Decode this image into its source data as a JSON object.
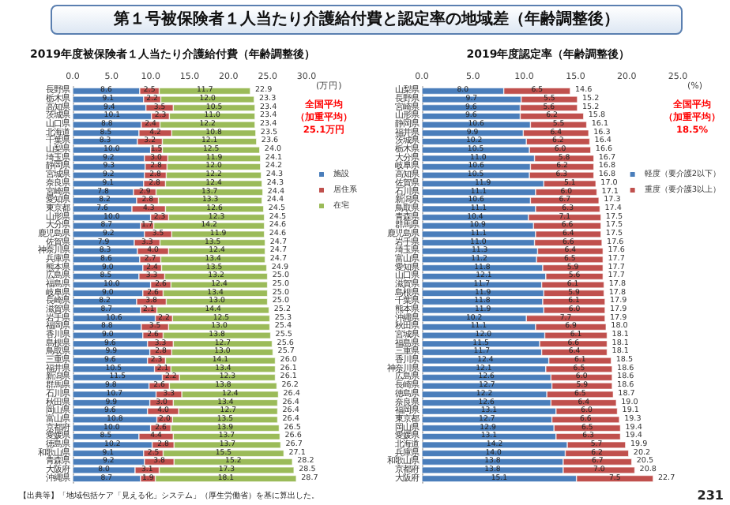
{
  "chart_data": [
    {
      "type": "bar",
      "title": "第１号被保険者１人当たり介護給付費と認定率の地域差（年齢調整後）",
      "subtitle": "2019年度被保険者１人当たり介護給付費（年齢調整後）",
      "xlabel": "(万円)",
      "orientation": "horizontal",
      "stacked": true,
      "legend": "right",
      "grid": false,
      "categories": [
        "長野県",
        "栃木県",
        "高知県",
        "茨城県",
        "山口県",
        "北海道",
        "千葉県",
        "山梨県",
        "埼玉県",
        "静岡県",
        "宮城県",
        "奈良県",
        "宮崎県",
        "愛知県",
        "東京都",
        "山形県",
        "大分県",
        "鹿児島県",
        "佐賀県",
        "神奈川県",
        "兵庫県",
        "熊本県",
        "広島県",
        "福島県",
        "岐阜県",
        "長崎県",
        "滋賀県",
        "岩手県",
        "福岡県",
        "香川県",
        "島根県",
        "鳥取県",
        "三重県",
        "福井県",
        "新潟県",
        "群馬県",
        "石川県",
        "秋田県",
        "岡山県",
        "富山県",
        "京都府",
        "愛媛県",
        "徳島県",
        "和歌山県",
        "青森県",
        "大阪府",
        "沖縄県"
      ],
      "series": [
        {
          "name": "施設",
          "color": "#4a7ebb",
          "values": [
            8.6,
            9.1,
            9.4,
            10.1,
            8.8,
            8.5,
            8.3,
            10.0,
            9.2,
            9.3,
            9.2,
            9.1,
            7.8,
            8.2,
            7.6,
            10.0,
            8.7,
            9.2,
            7.9,
            8.3,
            8.6,
            9.0,
            8.5,
            10.0,
            9.0,
            8.2,
            8.7,
            10.6,
            8.8,
            9.0,
            9.6,
            9.9,
            9.6,
            10.5,
            11.5,
            9.8,
            10.7,
            9.9,
            9.6,
            10.8,
            10.0,
            8.5,
            10.2,
            9.1,
            9.2,
            8.0,
            8.7
          ],
          "value_labels": [
            "8.6",
            "9.1",
            "9.4",
            "10.1",
            "8.8",
            "8.5",
            "8.3",
            "10.0",
            "9.2",
            "9.3",
            "9.2",
            "9.1",
            "7.8",
            "8.2",
            "7.6",
            "10.0",
            "8.7",
            "9.2",
            "7.9",
            "8.3",
            "8.6",
            "9.0",
            "8.5",
            "10.0",
            "9.0",
            "8.2",
            "8.7",
            "10.6",
            "8.8",
            "9.0",
            "9.6",
            "9.9",
            "9.6",
            "10.5",
            "11.5",
            "9.8",
            "10.7",
            "9.9",
            "9.6",
            "10.8",
            "10.0",
            "8.5",
            "10.2",
            "9.1",
            "9.2",
            "8.0",
            "8.7"
          ]
        },
        {
          "name": "居住系",
          "color": "#c0504d",
          "values": [
            2.5,
            2.2,
            3.5,
            2.3,
            2.4,
            4.2,
            3.2,
            1.5,
            3.0,
            2.8,
            2.8,
            2.8,
            2.9,
            2.8,
            4.3,
            2.3,
            1.7,
            3.5,
            3.3,
            4.0,
            2.7,
            2.4,
            3.3,
            2.6,
            2.6,
            3.8,
            2.1,
            2.2,
            3.5,
            2.6,
            3.3,
            2.8,
            2.3,
            2.1,
            2.2,
            2.6,
            3.3,
            3.0,
            4.0,
            2.0,
            2.6,
            4.4,
            2.8,
            2.5,
            3.8,
            3.1,
            1.9
          ],
          "value_labels": [
            "2.5",
            "2.2",
            "3.5",
            "2.3",
            "2.4",
            "4.2",
            "3.2",
            "1.5",
            "3.0",
            "2.8",
            "2.8",
            "2.8",
            "2.9",
            "2.8",
            "4.3",
            "2.3",
            "1.7",
            "3.5",
            "3.3",
            "4.0",
            "2.7",
            "2.4",
            "3.3",
            "2.6",
            "2.6",
            "3.8",
            "2.1",
            "2.2",
            "3.5",
            "2.6",
            "3.3",
            "2.8",
            "2.3",
            "2.1",
            "2.2",
            "2.6",
            "3.3",
            "3.0",
            "4.0",
            "2.0",
            "2.6",
            "4.4",
            "2.8",
            "2.5",
            "3.8",
            "3.1",
            "1.9"
          ]
        },
        {
          "name": "在宅",
          "color": "#9bbb59",
          "values": [
            11.7,
            12.0,
            10.5,
            11.0,
            12.2,
            10.8,
            12.1,
            12.5,
            11.9,
            12.0,
            12.2,
            12.4,
            13.7,
            13.3,
            12.6,
            12.3,
            14.2,
            11.9,
            13.5,
            12.4,
            13.4,
            13.5,
            13.2,
            12.4,
            13.4,
            13.0,
            14.4,
            12.5,
            13.0,
            13.8,
            12.7,
            13.0,
            14.1,
            13.4,
            12.3,
            13.8,
            12.4,
            13.4,
            12.7,
            13.5,
            13.9,
            13.7,
            13.7,
            15.5,
            15.2,
            17.3,
            18.1
          ],
          "value_labels": [
            "11.7",
            "12.0",
            "10.5",
            "11.0",
            "12.2",
            "10.8",
            "12.1",
            "12.5",
            "11.9",
            "12.0",
            "12.2",
            "12.4",
            "13.7",
            "13.3",
            "12.6",
            "12.3",
            "14.2",
            "11.9",
            "13.5",
            "12.4",
            "13.4",
            "13.5",
            "13.2",
            "12.4",
            "13.4",
            "13.0",
            "14.4",
            "12.5",
            "13.0",
            "13.8",
            "12.7",
            "13.0",
            "14.1",
            "13.4",
            "12.3",
            "13.8",
            "12.4",
            "13.4",
            "12.7",
            "13.5",
            "13.9",
            "13.7",
            "13.7",
            "15.5",
            "15.2",
            "17.3",
            "18.1"
          ]
        }
      ],
      "totals": [
        "22.9",
        "23.3",
        "23.4",
        "23.4",
        "23.4",
        "23.5",
        "23.6",
        "24.0",
        "24.1",
        "24.2",
        "24.3",
        "24.3",
        "24.4",
        "24.4",
        "24.5",
        "24.5",
        "24.6",
        "24.6",
        "24.7",
        "24.7",
        "24.7",
        "24.9",
        "25.0",
        "25.0",
        "25.0",
        "25.0",
        "25.2",
        "25.3",
        "25.4",
        "25.5",
        "25.6",
        "25.7",
        "26.0",
        "26.1",
        "26.1",
        "26.2",
        "26.4",
        "26.4",
        "26.4",
        "26.4",
        "26.5",
        "26.6",
        "26.7",
        "27.1",
        "28.2",
        "28.5",
        "28.7"
      ],
      "xlim": [
        0,
        30
      ],
      "xticks": [
        {
          "value": 0,
          "label": "0.0"
        },
        {
          "value": 5,
          "label": "5.0"
        },
        {
          "value": 10,
          "label": "10.0"
        },
        {
          "value": 15,
          "label": "15.0"
        },
        {
          "value": 20,
          "label": "20.0"
        },
        {
          "value": 25,
          "label": "25.0"
        },
        {
          "value": 30,
          "label": "30.0"
        }
      ],
      "annotations": [
        "全国平均",
        "（加重平均）",
        "25.1万円",
        "【出典等】「地域包括ケア「見える化」システム」（厚生労働省）を基に算出した。"
      ]
    },
    {
      "type": "bar",
      "title": "2019年度認定率（年齢調整後）",
      "xlabel": "(%)",
      "orientation": "horizontal",
      "stacked": true,
      "legend": "right",
      "grid": false,
      "categories": [
        "山梨県",
        "長野県",
        "宮崎県",
        "山形県",
        "静岡県",
        "福井県",
        "茨城県",
        "栃木県",
        "大分県",
        "岐阜県",
        "高知県",
        "佐賀県",
        "石川県",
        "新潟県",
        "鳥取県",
        "青森県",
        "群馬県",
        "鹿児島県",
        "岩手県",
        "埼玉県",
        "富山県",
        "愛知県",
        "山口県",
        "滋賀県",
        "島根県",
        "千葉県",
        "熊本県",
        "沖縄県",
        "秋田県",
        "宮城県",
        "福島県",
        "三重県",
        "香川県",
        "神奈川県",
        "広島県",
        "長崎県",
        "徳島県",
        "奈良県",
        "福岡県",
        "東京都",
        "岡山県",
        "愛媛県",
        "北海道",
        "兵庫県",
        "和歌山県",
        "京都府",
        "大阪府"
      ],
      "series": [
        {
          "name": "軽度（要介護2以下）",
          "color": "#4a7ebb",
          "values": [
            8.0,
            9.7,
            9.6,
            9.6,
            10.6,
            9.9,
            10.2,
            10.5,
            11.0,
            10.6,
            10.5,
            11.9,
            11.1,
            10.6,
            11.1,
            10.4,
            10.9,
            11.1,
            11.0,
            11.3,
            11.2,
            11.8,
            12.1,
            11.7,
            11.9,
            11.8,
            11.9,
            10.2,
            11.1,
            12.0,
            11.5,
            11.7,
            12.4,
            12.1,
            12.6,
            12.7,
            12.2,
            12.6,
            13.1,
            12.7,
            12.9,
            13.1,
            14.2,
            14.0,
            13.8,
            13.8,
            15.1
          ],
          "value_labels": [
            "8.0",
            "9.7",
            "9.6",
            "9.6",
            "10.6",
            "9.9",
            "10.2",
            "10.5",
            "11.0",
            "10.6",
            "10.5",
            "11.9",
            "11.1",
            "10.6",
            "11.1",
            "10.4",
            "10.9",
            "11.1",
            "11.0",
            "11.3",
            "11.2",
            "11.8",
            "12.1",
            "11.7",
            "11.9",
            "11.8",
            "11.9",
            "10.2",
            "11.1",
            "12.0",
            "11.5",
            "11.7",
            "12.4",
            "12.1",
            "12.6",
            "12.7",
            "12.2",
            "12.6",
            "13.1",
            "12.7",
            "12.9",
            "13.1",
            "14.2",
            "14.0",
            "13.8",
            "13.8",
            "15.1"
          ]
        },
        {
          "name": "重度（要介護3以上）",
          "color": "#c0504d",
          "values": [
            6.5,
            5.5,
            5.6,
            6.2,
            5.5,
            6.4,
            6.2,
            6.0,
            5.8,
            6.2,
            6.3,
            5.1,
            6.0,
            6.7,
            6.3,
            7.1,
            6.6,
            6.4,
            6.6,
            6.4,
            6.5,
            5.9,
            5.6,
            6.1,
            5.9,
            6.1,
            6.0,
            7.7,
            6.9,
            6.1,
            6.6,
            6.4,
            6.1,
            6.5,
            6.0,
            5.9,
            6.5,
            6.4,
            6.0,
            6.6,
            6.5,
            6.3,
            5.7,
            6.2,
            6.7,
            7.0,
            7.5
          ],
          "value_labels": [
            "6.5",
            "5.5",
            "5.6",
            "6.2",
            "5.5",
            "6.4",
            "6.2",
            "6.0",
            "5.8",
            "6.2",
            "6.3",
            "5.1",
            "6.0",
            "6.7",
            "6.3",
            "7.1",
            "6.6",
            "6.4",
            "6.6",
            "6.4",
            "6.5",
            "5.9",
            "5.6",
            "6.1",
            "5.9",
            "6.1",
            "6.0",
            "7.7",
            "6.9",
            "6.1",
            "6.6",
            "6.4",
            "6.1",
            "6.5",
            "6.0",
            "5.9",
            "6.5",
            "6.4",
            "6.0",
            "6.6",
            "6.5",
            "6.3",
            "5.7",
            "6.2",
            "6.7",
            "7.0",
            "7.5"
          ]
        }
      ],
      "totals": [
        "14.6",
        "15.2",
        "15.2",
        "15.8",
        "16.1",
        "16.3",
        "16.4",
        "16.6",
        "16.7",
        "16.8",
        "16.8",
        "17.0",
        "17.1",
        "17.3",
        "17.4",
        "17.5",
        "17.5",
        "17.5",
        "17.6",
        "17.6",
        "17.7",
        "17.7",
        "17.7",
        "17.8",
        "17.8",
        "17.9",
        "17.9",
        "17.9",
        "18.0",
        "18.1",
        "18.1",
        "18.1",
        "18.5",
        "18.6",
        "18.6",
        "18.6",
        "18.7",
        "19.0",
        "19.1",
        "19.3",
        "19.4",
        "19.4",
        "19.9",
        "20.2",
        "20.5",
        "20.8",
        "22.7"
      ],
      "xlim": [
        0,
        25
      ],
      "xticks": [
        {
          "value": 0,
          "label": "0.0"
        },
        {
          "value": 5,
          "label": "5.0"
        },
        {
          "value": 10,
          "label": "10.0"
        },
        {
          "value": 15,
          "label": "15.0"
        },
        {
          "value": 20,
          "label": "20.0"
        },
        {
          "value": 25,
          "label": "25.0"
        }
      ],
      "annotations": [
        "全国平均",
        "（加重平均）",
        "18.5%",
        "231"
      ]
    }
  ]
}
